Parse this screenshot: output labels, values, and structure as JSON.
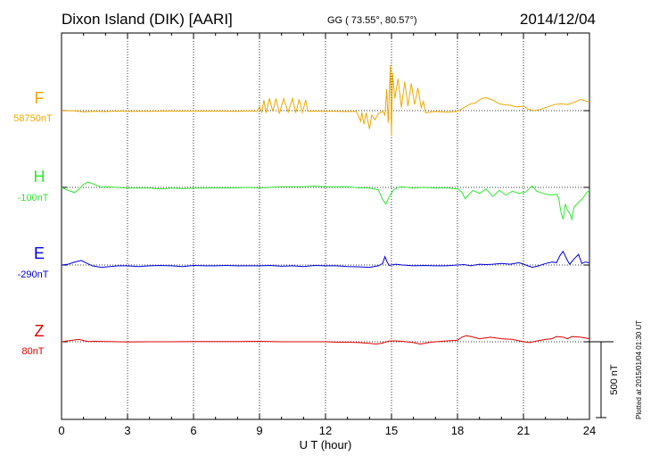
{
  "header": {
    "station": "Dixon Island (DIK)  [AARI]",
    "coords": "GG ( 73.55°,  80.57°)",
    "date": "2014/12/04"
  },
  "footer": {
    "plotted": "Plotted at 2015/01/04 01:30 UT"
  },
  "chart_data": {
    "type": "line",
    "title": "Dixon Island (DIK)  [AARI]",
    "xlabel": "U T (hour)",
    "xlim": [
      0,
      24
    ],
    "xticks": [
      0,
      3,
      6,
      9,
      12,
      15,
      18,
      21,
      24
    ],
    "xtick_labels": [
      "0",
      "3",
      "6",
      "9",
      "12",
      "15",
      "18",
      "21",
      "24"
    ],
    "scale_bar_label": "500 nT",
    "scale_bar_value": 500,
    "grid": true,
    "series": [
      {
        "name": "F",
        "baseline_label": "58750nT",
        "baseline": 58750,
        "color": "#f0a800",
        "points": [
          [
            0,
            -2
          ],
          [
            0.5,
            0
          ],
          [
            1,
            -8
          ],
          [
            1.5,
            -5
          ],
          [
            2,
            -6
          ],
          [
            2.5,
            -3
          ],
          [
            3,
            -4
          ],
          [
            4,
            -5
          ],
          [
            5,
            -3
          ],
          [
            6,
            -3
          ],
          [
            7,
            -3
          ],
          [
            8,
            -4
          ],
          [
            8.5,
            -2
          ],
          [
            8.9,
            -4
          ],
          [
            9,
            25
          ],
          [
            9.1,
            -10
          ],
          [
            9.2,
            70
          ],
          [
            9.3,
            -15
          ],
          [
            9.45,
            80
          ],
          [
            9.6,
            -5
          ],
          [
            9.75,
            80
          ],
          [
            9.9,
            -20
          ],
          [
            10.1,
            80
          ],
          [
            10.3,
            -10
          ],
          [
            10.5,
            80
          ],
          [
            10.65,
            -15
          ],
          [
            10.8,
            75
          ],
          [
            10.95,
            -12
          ],
          [
            11.1,
            70
          ],
          [
            11.2,
            -5
          ],
          [
            11.5,
            -3
          ],
          [
            11.9,
            -5
          ],
          [
            12,
            -4
          ],
          [
            12.5,
            -5
          ],
          [
            13,
            -6
          ],
          [
            13.4,
            -4
          ],
          [
            13.6,
            -70
          ],
          [
            13.65,
            -10
          ],
          [
            13.75,
            -90
          ],
          [
            13.85,
            -15
          ],
          [
            14.0,
            -120
          ],
          [
            14.1,
            -30
          ],
          [
            14.25,
            -60
          ],
          [
            14.4,
            -20
          ],
          [
            14.6,
            -5
          ],
          [
            14.7,
            -30
          ],
          [
            14.78,
            140
          ],
          [
            14.85,
            -80
          ],
          [
            14.95,
            300
          ],
          [
            15.0,
            -170
          ],
          [
            15.05,
            250
          ],
          [
            15.15,
            80
          ],
          [
            15.3,
            210
          ],
          [
            15.45,
            20
          ],
          [
            15.6,
            190
          ],
          [
            15.75,
            30
          ],
          [
            15.9,
            180
          ],
          [
            16.05,
            40
          ],
          [
            16.2,
            150
          ],
          [
            16.35,
            20
          ],
          [
            16.45,
            60
          ],
          [
            16.55,
            -15
          ],
          [
            16.7,
            -10
          ],
          [
            17,
            -5
          ],
          [
            17.5,
            -10
          ],
          [
            18,
            -5
          ],
          [
            18.3,
            20
          ],
          [
            18.6,
            45
          ],
          [
            18.8,
            50
          ],
          [
            19.1,
            80
          ],
          [
            19.3,
            85
          ],
          [
            19.6,
            70
          ],
          [
            19.9,
            45
          ],
          [
            20.1,
            40
          ],
          [
            20.4,
            35
          ],
          [
            20.7,
            25
          ],
          [
            21.0,
            30
          ],
          [
            21.2,
            10
          ],
          [
            21.5,
            0
          ],
          [
            21.8,
            10
          ],
          [
            22.1,
            25
          ],
          [
            22.4,
            40
          ],
          [
            22.7,
            45
          ],
          [
            23,
            40
          ],
          [
            23.3,
            55
          ],
          [
            23.6,
            75
          ],
          [
            23.9,
            60
          ],
          [
            24,
            60
          ]
        ]
      },
      {
        "name": "H",
        "baseline_label": "-100nT",
        "baseline": -100,
        "color": "#30e830",
        "points": [
          [
            0,
            0
          ],
          [
            0.3,
            -20
          ],
          [
            0.6,
            -35
          ],
          [
            0.8,
            -10
          ],
          [
            1.0,
            20
          ],
          [
            1.2,
            35
          ],
          [
            1.5,
            20
          ],
          [
            1.8,
            0
          ],
          [
            2,
            5
          ],
          [
            2.5,
            0
          ],
          [
            3,
            -5
          ],
          [
            3.5,
            -5
          ],
          [
            4,
            -5
          ],
          [
            4.5,
            -10
          ],
          [
            5,
            -5
          ],
          [
            5.5,
            -8
          ],
          [
            6,
            -5
          ],
          [
            6.5,
            -5
          ],
          [
            7,
            -3
          ],
          [
            7.5,
            -5
          ],
          [
            8,
            -3
          ],
          [
            8.5,
            0
          ],
          [
            9,
            -5
          ],
          [
            9.5,
            0
          ],
          [
            10,
            5
          ],
          [
            10.5,
            5
          ],
          [
            11,
            5
          ],
          [
            11.5,
            8
          ],
          [
            12,
            5
          ],
          [
            12.5,
            3
          ],
          [
            13,
            5
          ],
          [
            13.5,
            -3
          ],
          [
            14,
            -5
          ],
          [
            14.4,
            -15
          ],
          [
            14.6,
            -80
          ],
          [
            14.75,
            -110
          ],
          [
            14.9,
            -60
          ],
          [
            15.1,
            -15
          ],
          [
            15.4,
            5
          ],
          [
            15.7,
            0
          ],
          [
            16,
            -5
          ],
          [
            16.5,
            0
          ],
          [
            17,
            -5
          ],
          [
            17.5,
            -3
          ],
          [
            18,
            -10
          ],
          [
            18.2,
            -30
          ],
          [
            18.35,
            -75
          ],
          [
            18.5,
            -50
          ],
          [
            18.7,
            -20
          ],
          [
            19,
            -40
          ],
          [
            19.3,
            -10
          ],
          [
            19.6,
            -60
          ],
          [
            19.9,
            -20
          ],
          [
            20.2,
            -50
          ],
          [
            20.5,
            -25
          ],
          [
            20.8,
            -40
          ],
          [
            21.1,
            -30
          ],
          [
            21.4,
            10
          ],
          [
            21.6,
            -25
          ],
          [
            21.9,
            -40
          ],
          [
            22.2,
            -50
          ],
          [
            22.5,
            -45
          ],
          [
            22.6,
            -70
          ],
          [
            22.7,
            -160
          ],
          [
            22.8,
            -210
          ],
          [
            22.9,
            -110
          ],
          [
            23.0,
            -150
          ],
          [
            23.1,
            -170
          ],
          [
            23.2,
            -210
          ],
          [
            23.3,
            -130
          ],
          [
            23.5,
            -100
          ],
          [
            23.7,
            -70
          ],
          [
            23.9,
            -30
          ],
          [
            24,
            -20
          ]
        ]
      },
      {
        "name": "E",
        "baseline_label": "-290nT",
        "baseline": -290,
        "color": "#0000e0",
        "points": [
          [
            0,
            0
          ],
          [
            0.3,
            5
          ],
          [
            0.6,
            20
          ],
          [
            0.9,
            30
          ],
          [
            1.1,
            15
          ],
          [
            1.4,
            -5
          ],
          [
            1.8,
            -15
          ],
          [
            2.2,
            -10
          ],
          [
            2.6,
            -5
          ],
          [
            3,
            -5
          ],
          [
            3.5,
            -10
          ],
          [
            4,
            -5
          ],
          [
            4.5,
            -3
          ],
          [
            5,
            -5
          ],
          [
            5.5,
            -10
          ],
          [
            6,
            -3
          ],
          [
            6.5,
            -5
          ],
          [
            7,
            -5
          ],
          [
            7.5,
            -3
          ],
          [
            8,
            -5
          ],
          [
            8.5,
            -5
          ],
          [
            9,
            -5
          ],
          [
            9.5,
            -3
          ],
          [
            10,
            -8
          ],
          [
            10.5,
            -5
          ],
          [
            11,
            -10
          ],
          [
            11.5,
            -3
          ],
          [
            12,
            -5
          ],
          [
            12.5,
            -5
          ],
          [
            13,
            -10
          ],
          [
            13.5,
            -12
          ],
          [
            14,
            -15
          ],
          [
            14.4,
            -5
          ],
          [
            14.6,
            10
          ],
          [
            14.7,
            55
          ],
          [
            14.8,
            20
          ],
          [
            14.9,
            -3
          ],
          [
            15.2,
            5
          ],
          [
            15.5,
            0
          ],
          [
            16,
            -5
          ],
          [
            16.5,
            -3
          ],
          [
            17,
            -5
          ],
          [
            17.5,
            -5
          ],
          [
            18,
            0
          ],
          [
            18.3,
            3
          ],
          [
            18.6,
            -5
          ],
          [
            19,
            5
          ],
          [
            19.3,
            3
          ],
          [
            19.6,
            5
          ],
          [
            20,
            10
          ],
          [
            20.4,
            5
          ],
          [
            20.8,
            15
          ],
          [
            21.1,
            0
          ],
          [
            21.4,
            -15
          ],
          [
            21.7,
            -5
          ],
          [
            22,
            10
          ],
          [
            22.3,
            20
          ],
          [
            22.5,
            15
          ],
          [
            22.65,
            60
          ],
          [
            22.8,
            90
          ],
          [
            23.0,
            30
          ],
          [
            23.1,
            5
          ],
          [
            23.3,
            40
          ],
          [
            23.5,
            70
          ],
          [
            23.65,
            10
          ],
          [
            23.8,
            20
          ],
          [
            24,
            15
          ]
        ]
      },
      {
        "name": "Z",
        "baseline_label": "80nT",
        "baseline": 80,
        "color": "#e00000",
        "points": [
          [
            0,
            0
          ],
          [
            0.5,
            10
          ],
          [
            0.8,
            15
          ],
          [
            1.2,
            2
          ],
          [
            1.5,
            3
          ],
          [
            2,
            2
          ],
          [
            2.5,
            0
          ],
          [
            3,
            -2
          ],
          [
            4,
            0
          ],
          [
            5,
            0
          ],
          [
            6,
            2
          ],
          [
            7,
            2
          ],
          [
            8,
            2
          ],
          [
            9,
            3
          ],
          [
            10,
            0
          ],
          [
            11,
            0
          ],
          [
            12,
            0
          ],
          [
            12.5,
            -3
          ],
          [
            13,
            -3
          ],
          [
            13.5,
            -5
          ],
          [
            14,
            -10
          ],
          [
            14.3,
            -15
          ],
          [
            14.6,
            -8
          ],
          [
            14.9,
            5
          ],
          [
            15.2,
            5
          ],
          [
            15.5,
            3
          ],
          [
            16,
            -5
          ],
          [
            16.3,
            -15
          ],
          [
            16.7,
            -5
          ],
          [
            17,
            0
          ],
          [
            17.5,
            5
          ],
          [
            18,
            10
          ],
          [
            18.2,
            30
          ],
          [
            18.4,
            40
          ],
          [
            18.6,
            35
          ],
          [
            19,
            20
          ],
          [
            19.5,
            30
          ],
          [
            20,
            20
          ],
          [
            20.5,
            15
          ],
          [
            21,
            0
          ],
          [
            21.3,
            -5
          ],
          [
            21.6,
            5
          ],
          [
            22,
            15
          ],
          [
            22.3,
            20
          ],
          [
            22.5,
            35
          ],
          [
            22.8,
            30
          ],
          [
            23,
            20
          ],
          [
            23.2,
            35
          ],
          [
            23.6,
            30
          ],
          [
            24,
            20
          ]
        ]
      }
    ]
  }
}
